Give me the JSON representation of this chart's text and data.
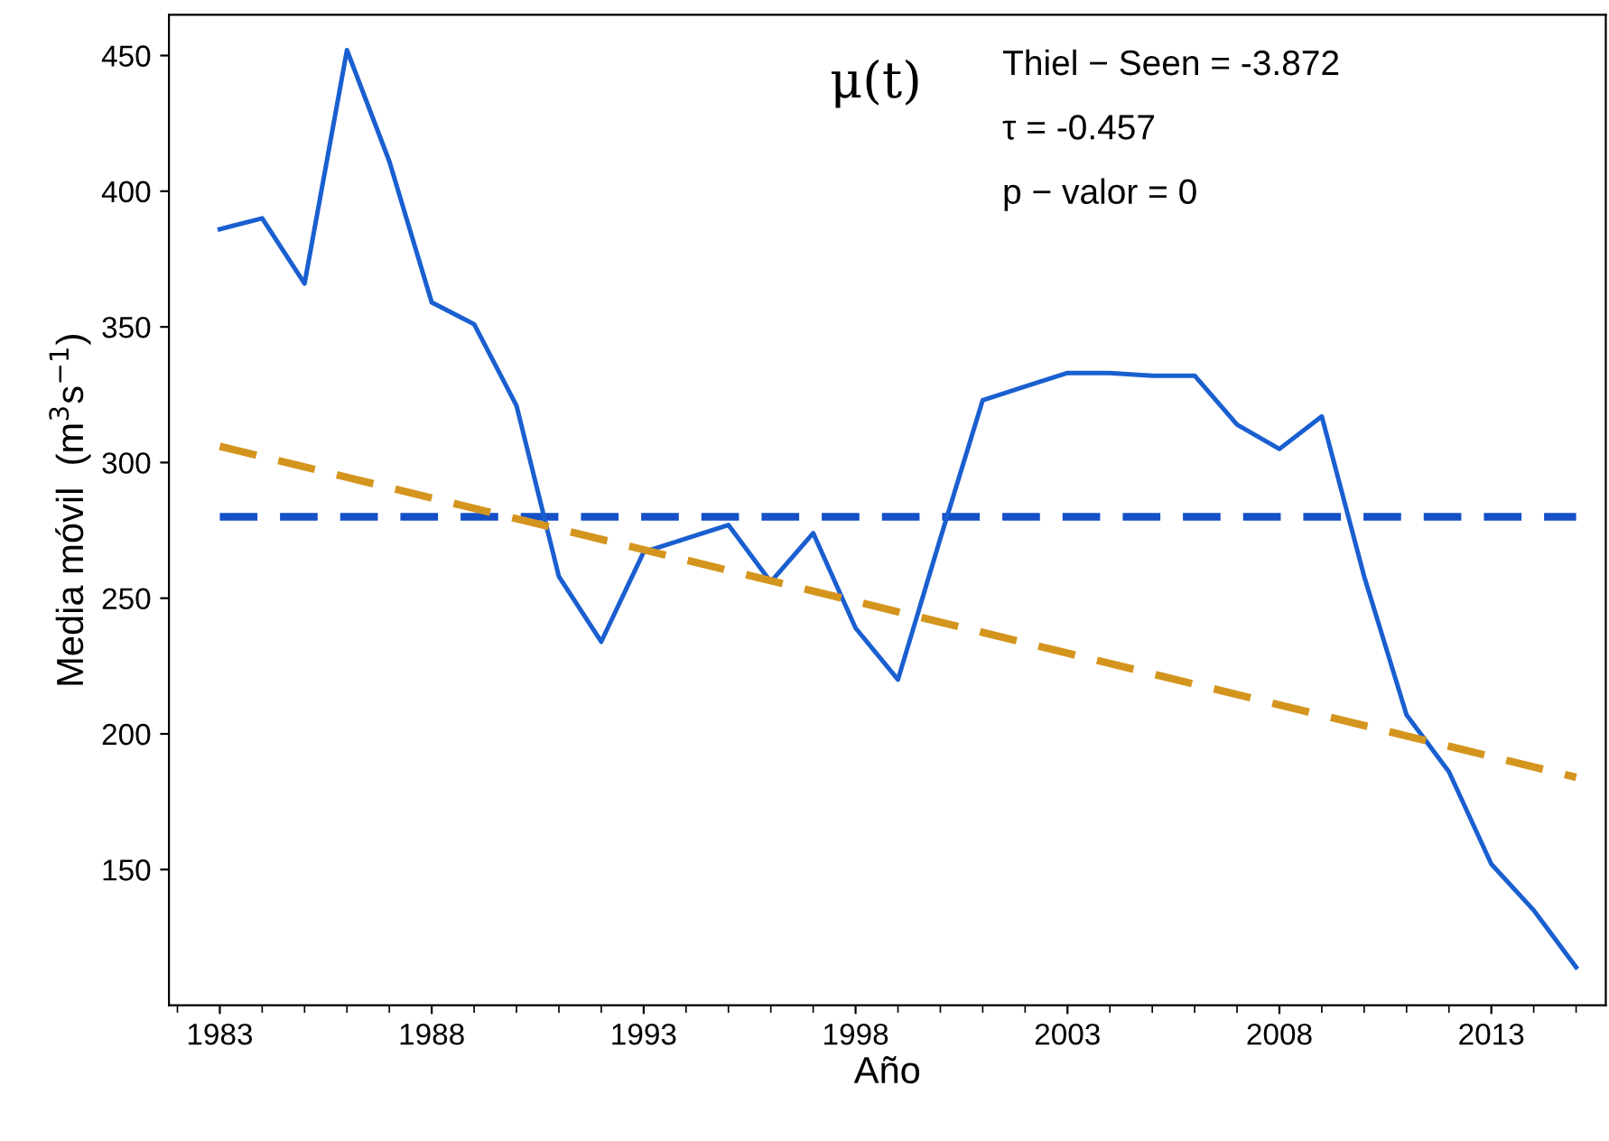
{
  "chart_data": {
    "type": "line",
    "xlabel": "Año",
    "ylabel": "Media móvil  (m$^{3}$s$^{−1}$)",
    "annotations": [
      "μ(t)",
      "Thiel − Seen = -3.872",
      "τ = -0.457",
      "p − valor = 0"
    ],
    "x": [
      1983,
      1984,
      1985,
      1986,
      1987,
      1988,
      1989,
      1990,
      1991,
      1992,
      1993,
      1994,
      1995,
      1996,
      1997,
      1998,
      1999,
      2000,
      2001,
      2002,
      2003,
      2004,
      2005,
      2006,
      2007,
      2008,
      2009,
      2010,
      2011,
      2012,
      2013,
      2014,
      2015
    ],
    "series": [
      {
        "color": "#1a5fd0",
        "line_style": "solid",
        "values": [
          386,
          390,
          366,
          452,
          411,
          359,
          351,
          321,
          258,
          234,
          267,
          272,
          277,
          256,
          274,
          239,
          220,
          272,
          323,
          328,
          333,
          333,
          332,
          332,
          314,
          305,
          317,
          258,
          207,
          186,
          152,
          135,
          114
        ]
      },
      {
        "type": "line",
        "color": "#d4951e",
        "line_style": "dashed",
        "x": [
          1983,
          2015
        ],
        "values": [
          306,
          184
        ]
      }
    ],
    "ref_lines": [
      {
        "axis": "y",
        "value": 280,
        "color": "#1550c8",
        "line_style": "dashed"
      }
    ],
    "xlim": [
      1981.8,
      2015.7
    ],
    "ylim": [
      100,
      465
    ],
    "xticks": [
      1983,
      1988,
      1993,
      1998,
      2003,
      2008,
      2013
    ],
    "yticks": [
      150,
      200,
      250,
      300,
      350,
      400,
      450
    ],
    "grid": false,
    "legend": false,
    "marker": "none"
  }
}
